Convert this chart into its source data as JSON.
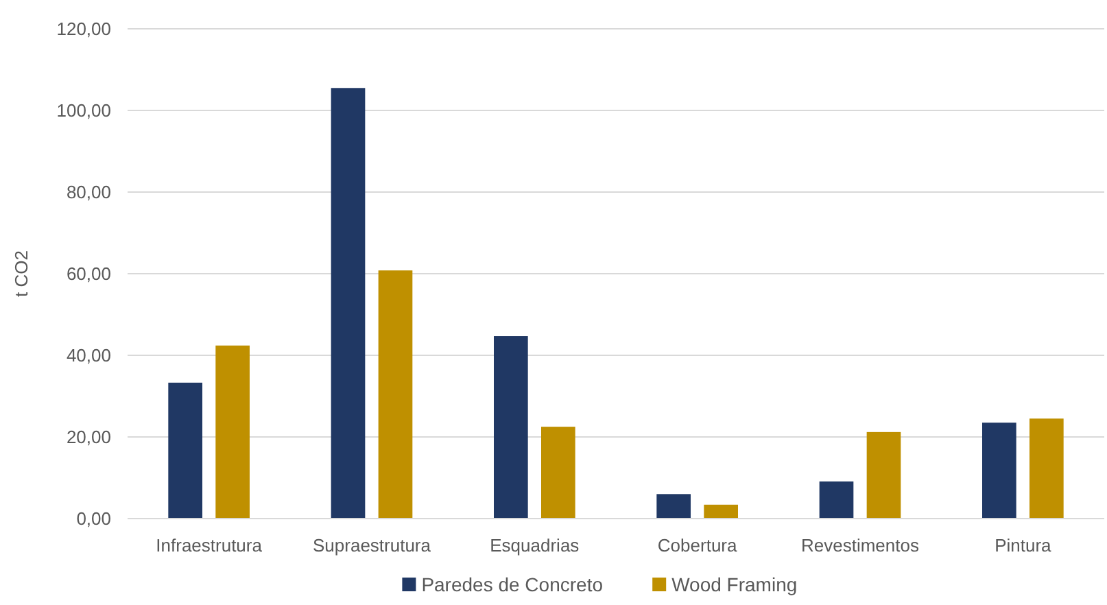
{
  "chart_data": {
    "type": "bar",
    "ylabel": "t CO2",
    "categories": [
      "Infraestrutura",
      "Supraestrutura",
      "Esquadrias",
      "Cobertura",
      "Revestimentos",
      "Pintura"
    ],
    "series": [
      {
        "name": "Paredes de Concreto",
        "color": "#203864",
        "values": [
          33.3,
          105.5,
          44.7,
          6.0,
          9.1,
          23.5
        ]
      },
      {
        "name": "Wood Framing",
        "color": "#bf9000",
        "values": [
          42.4,
          60.8,
          22.5,
          3.4,
          21.2,
          24.5
        ]
      }
    ],
    "ylim": [
      0,
      120
    ],
    "yticks": [
      {
        "value": 0,
        "label": "0,00"
      },
      {
        "value": 20,
        "label": "20,00"
      },
      {
        "value": 40,
        "label": "40,00"
      },
      {
        "value": 60,
        "label": "60,00"
      },
      {
        "value": 80,
        "label": "80,00"
      },
      {
        "value": 100,
        "label": "100,00"
      },
      {
        "value": 120,
        "label": "120,00"
      }
    ],
    "grid": true,
    "legend": "bottom"
  }
}
